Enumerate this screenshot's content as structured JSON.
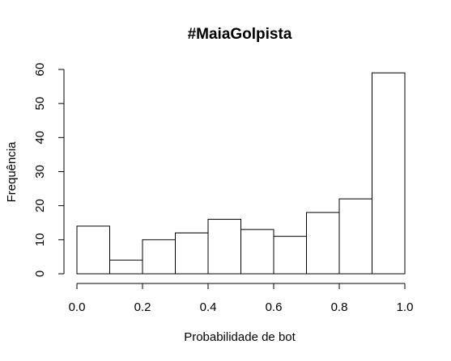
{
  "chart_data": {
    "type": "bar",
    "title": "#MaiaGolpista",
    "xlabel": "Probabilidade de bot",
    "ylabel": "Frequência",
    "bin_edges": [
      0.0,
      0.1,
      0.2,
      0.3,
      0.4,
      0.5,
      0.6,
      0.7,
      0.8,
      0.9,
      1.0
    ],
    "values": [
      14,
      4,
      10,
      12,
      16,
      13,
      11,
      18,
      22,
      59
    ],
    "xlim": [
      0.0,
      1.0
    ],
    "ylim": [
      0,
      60
    ],
    "x_ticks": [
      0.0,
      0.2,
      0.4,
      0.6,
      0.8,
      1.0
    ],
    "x_tick_labels": [
      "0.0",
      "0.2",
      "0.4",
      "0.6",
      "0.8",
      "1.0"
    ],
    "y_ticks": [
      0,
      10,
      20,
      30,
      40,
      50,
      60
    ],
    "y_tick_labels": [
      "0",
      "10",
      "20",
      "30",
      "40",
      "50",
      "60"
    ],
    "grid": false,
    "bar_fill": "#ffffff",
    "bar_stroke": "#000000"
  }
}
